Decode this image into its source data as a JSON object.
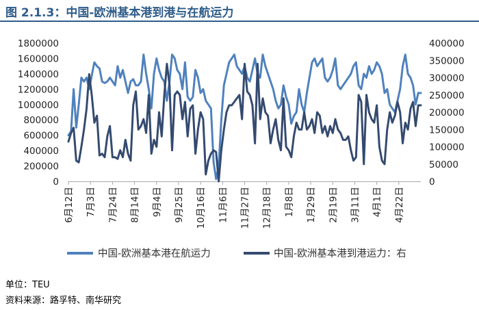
{
  "title": "图 2.1.3：中国-欧洲基本港到港与在航运力",
  "unit_note": "单位：TEU",
  "source_note": "资料来源：路孚特、南华研究",
  "colors": {
    "title": "#2E5C8A",
    "series_light": "#4F81BD",
    "series_dark": "#344A6F"
  },
  "chart_data": {
    "type": "line",
    "title": "",
    "legend_position": "bottom",
    "grid": false,
    "x_tick_labels": [
      "6月12日",
      "7月3日",
      "7月24日",
      "8月14日",
      "9月4日",
      "9月25日",
      "10月16日",
      "11月6日",
      "11月27日",
      "12月18日",
      "1月8日",
      "1月29日",
      "2月19日",
      "3月11日",
      "4月1日",
      "4月22日"
    ],
    "y_left": {
      "min": 0,
      "max": 1800000,
      "ticks": [
        0,
        200000,
        400000,
        600000,
        800000,
        1000000,
        1200000,
        1400000,
        1600000,
        1800000
      ]
    },
    "y_right": {
      "min": 0,
      "max": 400000,
      "ticks": [
        0,
        50000,
        100000,
        150000,
        200000,
        250000,
        300000,
        350000,
        400000
      ]
    },
    "series": [
      {
        "name": "中国-欧洲基本港在航运力",
        "axis": "left",
        "values": [
          600000,
          650000,
          1200000,
          700000,
          1000000,
          1350000,
          1300000,
          1350000,
          1200000,
          1380000,
          1550000,
          1500000,
          1470000,
          1300000,
          1280000,
          1300000,
          1350000,
          1300000,
          1250000,
          1500000,
          1350000,
          1450000,
          1300000,
          1150000,
          1300000,
          1330000,
          1250000,
          1250000,
          1300000,
          1650000,
          1400000,
          1200000,
          950000,
          1400000,
          1600000,
          1450000,
          1350000,
          1300000,
          1050000,
          1300000,
          1650000,
          1600000,
          1450000,
          1400000,
          1200000,
          1550000,
          1100000,
          1050000,
          1100000,
          1450000,
          1350000,
          1150000,
          1200000,
          1050000,
          1000000,
          950000,
          250000,
          30000,
          200000,
          800000,
          1250000,
          1400000,
          1550000,
          1600000,
          1650000,
          1500000,
          1450000,
          1400000,
          1500000,
          1350000,
          1300000,
          1450000,
          1600000,
          1400000,
          1350000,
          1650000,
          1500000,
          1400000,
          1300000,
          1200000,
          1050000,
          950000,
          1000000,
          1250000,
          1100000,
          1000000,
          750000,
          850000,
          900000,
          1200000,
          1000000,
          900000,
          1150000,
          1350000,
          1550000,
          1600000,
          1500000,
          1550000,
          1600000,
          1350000,
          1300000,
          1350000,
          1450000,
          1600000,
          1250000,
          1200000,
          1250000,
          1300000,
          1350000,
          1400000,
          1500000,
          1550000,
          1250000,
          1200000,
          1400000,
          1350000,
          1500000,
          1400000,
          1450000,
          1550000,
          1500000,
          1400000,
          1150000,
          1200000,
          1000000,
          950000,
          900000,
          1050000,
          1200000,
          1500000,
          1650000,
          1400000,
          1350000,
          1250000,
          1000000,
          1150000,
          1150000
        ]
      },
      {
        "name": "中国-欧洲基本港到港运力：右",
        "axis": "right",
        "values": [
          115000,
          140000,
          155000,
          60000,
          55000,
          100000,
          150000,
          210000,
          310000,
          250000,
          170000,
          190000,
          75000,
          80000,
          70000,
          130000,
          160000,
          70000,
          70000,
          65000,
          90000,
          70000,
          120000,
          80000,
          60000,
          220000,
          260000,
          150000,
          160000,
          180000,
          140000,
          250000,
          80000,
          120000,
          100000,
          200000,
          130000,
          250000,
          340000,
          280000,
          90000,
          250000,
          260000,
          250000,
          180000,
          230000,
          130000,
          210000,
          220000,
          80000,
          150000,
          200000,
          180000,
          20000,
          60000,
          80000,
          90000,
          85000,
          0,
          90000,
          150000,
          200000,
          220000,
          220000,
          230000,
          240000,
          250000,
          180000,
          340000,
          260000,
          250000,
          220000,
          110000,
          340000,
          180000,
          240000,
          200000,
          190000,
          110000,
          150000,
          180000,
          120000,
          90000,
          240000,
          100000,
          90000,
          70000,
          130000,
          170000,
          150000,
          150000,
          200000,
          150000,
          160000,
          180000,
          140000,
          200000,
          190000,
          140000,
          160000,
          130000,
          160000,
          140000,
          180000,
          150000,
          140000,
          120000,
          120000,
          130000,
          90000,
          60000,
          70000,
          250000,
          230000,
          50000,
          250000,
          200000,
          180000,
          170000,
          220000,
          100000,
          60000,
          50000,
          150000,
          200000,
          170000,
          190000,
          230000,
          200000,
          110000,
          170000,
          150000,
          210000,
          230000,
          160000,
          220000,
          220000
        ]
      }
    ]
  }
}
